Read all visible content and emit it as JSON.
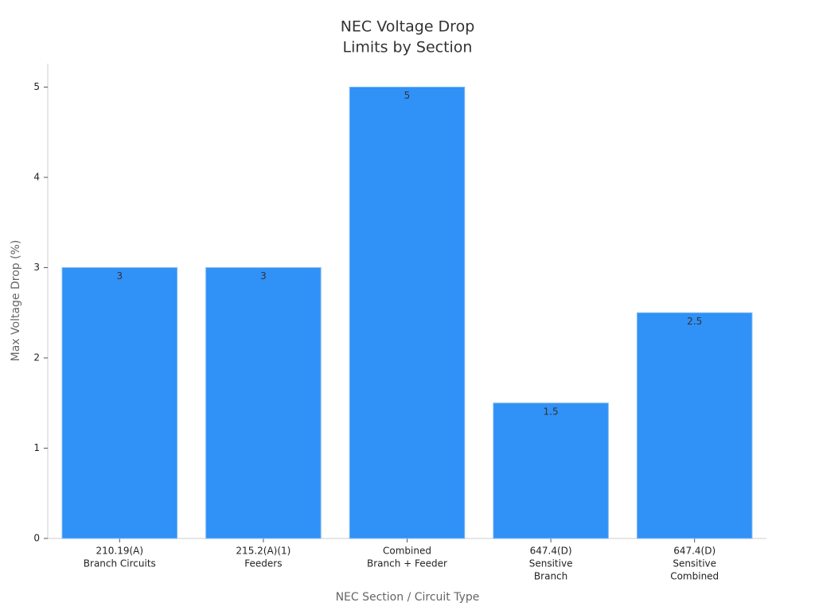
{
  "chart_data": {
    "type": "bar",
    "title": [
      "NEC Voltage Drop",
      "Limits by Section"
    ],
    "x_label": "NEC Section / Circuit Type",
    "y_label": "Max Voltage Drop (%)",
    "categories": [
      [
        "210.19(A)",
        "Branch Circuits"
      ],
      [
        "215.2(A)(1)",
        "Feeders"
      ],
      [
        "Combined",
        "Branch + Feeder"
      ],
      [
        "647.4(D)",
        "Sensitive",
        "Branch"
      ],
      [
        "647.4(D)",
        "Sensitive",
        "Combined"
      ]
    ],
    "values": [
      3,
      3,
      5,
      1.5,
      2.5
    ],
    "color": "#3091f7",
    "ylim": [
      0,
      5.26
    ],
    "yticks": [
      0,
      1,
      2,
      3,
      4,
      5
    ],
    "grid": false
  }
}
